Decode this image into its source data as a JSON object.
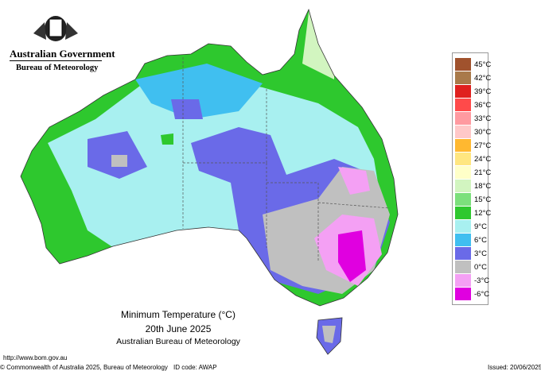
{
  "header": {
    "government": "Australian Government",
    "agency": "Bureau of Meteorology"
  },
  "legend": [
    {
      "label": "45°C",
      "color": "#a0522d"
    },
    {
      "label": "42°C",
      "color": "#a97a4a"
    },
    {
      "label": "39°C",
      "color": "#e0201e"
    },
    {
      "label": "36°C",
      "color": "#ff4a4a"
    },
    {
      "label": "33°C",
      "color": "#ff9aa0"
    },
    {
      "label": "30°C",
      "color": "#ffc8c8"
    },
    {
      "label": "27°C",
      "color": "#ffb830"
    },
    {
      "label": "24°C",
      "color": "#ffe680"
    },
    {
      "label": "21°C",
      "color": "#ffffc8"
    },
    {
      "label": "18°C",
      "color": "#d2f5c0"
    },
    {
      "label": "15°C",
      "color": "#7ce07c"
    },
    {
      "label": "12°C",
      "color": "#2ec82e"
    },
    {
      "label": "9°C",
      "color": "#a8f0f0"
    },
    {
      "label": "6°C",
      "color": "#40bff0"
    },
    {
      "label": "3°C",
      "color": "#6a6ae8"
    },
    {
      "label": "0°C",
      "color": "#c0c0c0"
    },
    {
      "label": "-3°C",
      "color": "#f4a0f4"
    },
    {
      "label": "-6°C",
      "color": "#e000e0"
    }
  ],
  "title": {
    "line1": "Minimum Temperature (°C)",
    "line2": "20th June 2025",
    "line3": "Australian Bureau of Meteorology"
  },
  "footer": {
    "url": "http://www.bom.gov.au",
    "copyright": "© Commonwealth of Australia 2025, Bureau of Meteorology",
    "id": "ID code: AWAP",
    "issued": "Issued: 20/06/2025"
  }
}
